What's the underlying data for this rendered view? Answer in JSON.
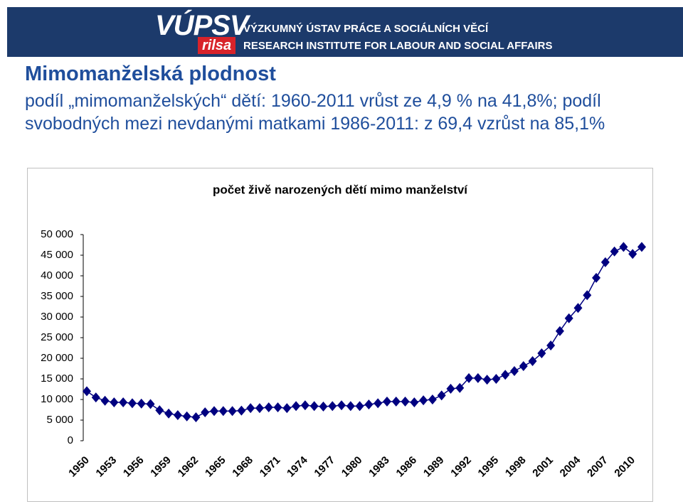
{
  "header": {
    "logo": "VÚPSV",
    "logo_sub": "rilsa",
    "line1": "VÝZKUMNÝ ÚSTAV PRÁCE A SOCIÁLNÍCH VĚCÍ",
    "line2": "RESEARCH INSTITUTE FOR LABOUR AND SOCIAL AFFAIRS"
  },
  "title": "Mimomanželská plodnost",
  "subtitle": "podíl „mimomanželských“ dětí: 1960-2011 vrůst ze 4,9 % na 41,8%; podíl svobodných mezi nevdanými matkami 1986-2011: z 69,4 vzrůst na 85,1%",
  "chart_data": {
    "type": "line",
    "title": "počet živě narozených dětí mimo manželství",
    "x": [
      1950,
      1951,
      1952,
      1953,
      1954,
      1955,
      1956,
      1957,
      1958,
      1959,
      1960,
      1961,
      1962,
      1963,
      1964,
      1965,
      1966,
      1967,
      1968,
      1969,
      1970,
      1971,
      1972,
      1973,
      1974,
      1975,
      1976,
      1977,
      1978,
      1979,
      1980,
      1981,
      1982,
      1983,
      1984,
      1985,
      1986,
      1987,
      1988,
      1989,
      1990,
      1991,
      1992,
      1993,
      1994,
      1995,
      1996,
      1997,
      1998,
      1999,
      2000,
      2001,
      2002,
      2003,
      2004,
      2005,
      2006,
      2007,
      2008,
      2009,
      2010,
      2011
    ],
    "series": [
      {
        "color": "#000080",
        "values": [
          12000,
          10500,
          9700,
          9300,
          9300,
          9100,
          9000,
          8900,
          7400,
          6600,
          6200,
          5900,
          5700,
          6900,
          7200,
          7200,
          7200,
          7300,
          7900,
          7900,
          8100,
          8100,
          7900,
          8400,
          8600,
          8400,
          8300,
          8400,
          8600,
          8400,
          8400,
          8800,
          9100,
          9500,
          9500,
          9500,
          9300,
          9800,
          10000,
          11000,
          12600,
          12800,
          15200,
          15200,
          14800,
          15000,
          16000,
          16900,
          18100,
          19300,
          21200,
          23100,
          26600,
          29700,
          32200,
          35300,
          39500,
          43300,
          45900,
          47000,
          45300,
          47000
        ]
      }
    ],
    "xlim": [
      1950,
      2011
    ],
    "xticks": [
      1950,
      1953,
      1956,
      1959,
      1962,
      1965,
      1968,
      1971,
      1974,
      1977,
      1980,
      1983,
      1986,
      1989,
      1992,
      1995,
      1998,
      2001,
      2004,
      2007,
      2010
    ],
    "ylim": [
      0,
      50000
    ],
    "yticks": [
      0,
      {
        "value": 5000,
        "label": "5 000"
      },
      {
        "value": 10000,
        "label": "10 000"
      },
      {
        "value": 15000,
        "label": "15 000"
      },
      {
        "value": 20000,
        "label": "20 000"
      },
      {
        "value": 25000,
        "label": "25 000"
      },
      {
        "value": 30000,
        "label": "30 000"
      },
      {
        "value": 35000,
        "label": "35 000"
      },
      {
        "value": 40000,
        "label": "40 000"
      },
      {
        "value": 45000,
        "label": "45 000"
      },
      {
        "value": 50000,
        "label": "50 000"
      }
    ],
    "grid": false,
    "marker": "diamond"
  }
}
